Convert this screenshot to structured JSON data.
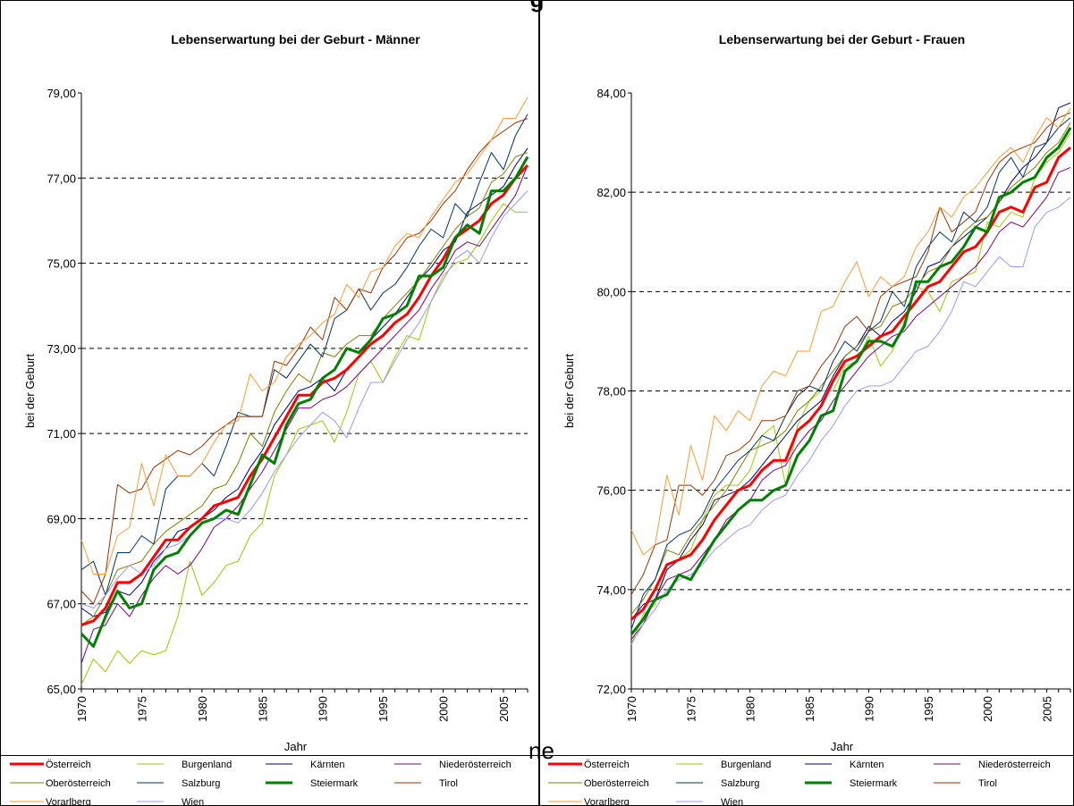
{
  "page": {
    "top_title_fragment": "g",
    "overlap_fragment": "ne"
  },
  "colors": {
    "Österreich": "#ff0000",
    "Burgenland": "#99cc00",
    "Kärnten": "#000080",
    "Niederösterreich": "#800080",
    "Oberösterreich": "#808000",
    "Salzburg": "#003366",
    "Steiermark": "#008000",
    "Tirol": "#993300",
    "Vorarlberg": "#ff9933",
    "Wien": "#9999ff"
  },
  "chart_data": [
    {
      "type": "line",
      "title": "Lebenserwartung bei der Geburt - Männer",
      "xlabel": "Jahr",
      "ylabel": "bei der Geburt",
      "xlim": [
        1970,
        2007
      ],
      "ylim": [
        65,
        79
      ],
      "yticks": [
        "65,00",
        "67,00",
        "69,00",
        "71,00",
        "73,00",
        "75,00",
        "77,00",
        "79,00"
      ],
      "xticks": [
        "1970",
        "1975",
        "1980",
        "1985",
        "1990",
        "1995",
        "2000",
        "2005"
      ],
      "grid": "dashed horizontal",
      "legend": "bottom",
      "x": [
        1970,
        1971,
        1972,
        1973,
        1974,
        1975,
        1976,
        1977,
        1978,
        1979,
        1980,
        1981,
        1982,
        1983,
        1984,
        1985,
        1986,
        1987,
        1988,
        1989,
        1990,
        1991,
        1992,
        1993,
        1994,
        1995,
        1996,
        1997,
        1998,
        1999,
        2000,
        2001,
        2002,
        2003,
        2004,
        2005,
        2006,
        2007
      ],
      "series": [
        {
          "name": "Österreich",
          "values": [
            66.5,
            66.6,
            66.9,
            67.5,
            67.5,
            67.7,
            68.1,
            68.5,
            68.5,
            68.8,
            69.0,
            69.3,
            69.4,
            69.5,
            70.0,
            70.4,
            70.9,
            71.4,
            71.9,
            71.9,
            72.2,
            72.3,
            72.5,
            72.8,
            73.1,
            73.3,
            73.6,
            73.8,
            74.2,
            74.7,
            75.1,
            75.6,
            75.8,
            76.0,
            76.4,
            76.6,
            77.0,
            77.3
          ]
        },
        {
          "name": "Burgenland",
          "values": [
            65.1,
            65.7,
            65.4,
            65.9,
            65.6,
            65.9,
            65.8,
            65.9,
            66.7,
            68.0,
            67.2,
            67.5,
            67.9,
            68.0,
            68.6,
            68.9,
            70.0,
            70.5,
            71.1,
            71.2,
            71.3,
            70.8,
            71.5,
            72.4,
            72.7,
            72.2,
            72.8,
            73.3,
            73.2,
            74.1,
            74.7,
            75.0,
            75.1,
            75.5,
            76.0,
            76.4,
            76.2,
            76.2
          ]
        },
        {
          "name": "Kärnten",
          "values": [
            66.9,
            66.7,
            66.8,
            67.3,
            67.2,
            67.5,
            68.0,
            68.3,
            68.7,
            68.8,
            69.0,
            69.2,
            69.5,
            69.7,
            70.2,
            70.6,
            71.2,
            71.6,
            72.0,
            72.1,
            72.3,
            72.0,
            72.5,
            72.8,
            73.2,
            73.5,
            73.8,
            74.2,
            74.6,
            74.9,
            75.3,
            75.5,
            76.2,
            76.4,
            76.6,
            76.8,
            77.3,
            77.7
          ]
        },
        {
          "name": "Niederösterreich",
          "values": [
            65.6,
            66.4,
            66.5,
            67.0,
            66.7,
            67.2,
            67.6,
            67.9,
            67.7,
            67.9,
            68.3,
            68.8,
            69.0,
            69.3,
            69.7,
            70.1,
            70.6,
            71.1,
            71.6,
            71.6,
            71.8,
            71.9,
            72.1,
            72.4,
            72.7,
            73.0,
            73.3,
            73.6,
            73.9,
            74.4,
            74.8,
            75.3,
            75.5,
            75.4,
            75.8,
            76.2,
            76.6,
            77.3
          ]
        },
        {
          "name": "Oberösterreich",
          "values": [
            66.5,
            66.7,
            67.2,
            67.8,
            67.9,
            68.0,
            68.4,
            68.7,
            68.9,
            69.1,
            69.3,
            69.7,
            69.8,
            70.3,
            71.0,
            70.7,
            71.5,
            72.0,
            72.4,
            72.2,
            72.9,
            72.8,
            73.1,
            73.3,
            73.3,
            73.7,
            74.0,
            74.3,
            74.6,
            75.0,
            75.4,
            75.8,
            76.1,
            76.3,
            76.9,
            77.1,
            77.5,
            77.6
          ]
        },
        {
          "name": "Salzburg",
          "values": [
            67.8,
            68.0,
            67.2,
            68.2,
            68.2,
            68.6,
            68.4,
            69.7,
            70.0,
            70.0,
            70.3,
            70.0,
            70.7,
            71.5,
            71.4,
            71.4,
            72.5,
            72.3,
            72.7,
            73.1,
            72.8,
            73.7,
            73.9,
            74.4,
            73.9,
            74.3,
            74.5,
            74.9,
            75.4,
            75.8,
            75.6,
            76.4,
            76.1,
            76.9,
            77.6,
            77.2,
            78.0,
            78.5
          ]
        },
        {
          "name": "Steiermark",
          "values": [
            66.3,
            66.0,
            66.7,
            67.3,
            66.9,
            67.0,
            67.8,
            68.1,
            68.2,
            68.6,
            68.9,
            69.0,
            69.2,
            69.1,
            69.8,
            70.5,
            70.3,
            71.2,
            71.7,
            71.8,
            72.3,
            72.5,
            73.0,
            72.9,
            73.2,
            73.7,
            73.8,
            74.0,
            74.7,
            74.7,
            74.9,
            75.6,
            75.9,
            75.7,
            76.7,
            76.7,
            77.0,
            77.5
          ]
        },
        {
          "name": "Tirol",
          "values": [
            67.3,
            67.0,
            67.7,
            69.8,
            69.6,
            69.7,
            70.2,
            70.4,
            70.6,
            70.5,
            70.7,
            71.0,
            71.2,
            71.4,
            71.4,
            71.4,
            72.7,
            72.6,
            73.0,
            73.5,
            73.2,
            74.2,
            73.9,
            74.4,
            74.3,
            74.9,
            75.2,
            75.6,
            75.7,
            76.0,
            76.4,
            76.7,
            77.2,
            77.6,
            77.9,
            78.1,
            78.3,
            78.4
          ]
        },
        {
          "name": "Vorarlberg",
          "values": [
            68.5,
            67.7,
            67.7,
            68.6,
            68.8,
            70.3,
            69.3,
            70.5,
            70.0,
            70.0,
            70.3,
            70.8,
            71.2,
            71.3,
            72.4,
            72.0,
            72.2,
            72.8,
            73.1,
            73.3,
            73.6,
            73.8,
            74.5,
            74.2,
            74.8,
            74.9,
            75.4,
            75.7,
            75.6,
            76.1,
            76.5,
            76.9,
            77.1,
            77.5,
            77.9,
            78.4,
            78.4,
            78.9
          ]
        },
        {
          "name": "Wien",
          "values": [
            67.0,
            66.9,
            67.2,
            67.6,
            67.9,
            67.7,
            67.9,
            68.3,
            68.4,
            68.6,
            68.9,
            69.0,
            69.0,
            68.9,
            69.2,
            69.6,
            70.1,
            70.5,
            70.9,
            71.2,
            71.5,
            71.3,
            70.9,
            71.6,
            72.2,
            72.2,
            72.7,
            73.2,
            73.6,
            74.1,
            74.6,
            75.1,
            75.3,
            75.0,
            75.6,
            76.1,
            76.4,
            76.7
          ]
        }
      ]
    },
    {
      "type": "line",
      "title": "Lebenserwartung bei der Geburt - Frauen",
      "xlabel": "Jahr",
      "ylabel": "bei der Geburt",
      "xlim": [
        1970,
        2007
      ],
      "ylim": [
        72,
        84
      ],
      "yticks": [
        "72,00",
        "74,00",
        "76,00",
        "78,00",
        "80,00",
        "82,00",
        "84,00"
      ],
      "xticks": [
        "1970",
        "1975",
        "1980",
        "1985",
        "1990",
        "1995",
        "2000",
        "2005"
      ],
      "grid": "dashed horizontal",
      "legend": "bottom",
      "x": [
        1970,
        1971,
        1972,
        1973,
        1974,
        1975,
        1976,
        1977,
        1978,
        1979,
        1980,
        1981,
        1982,
        1983,
        1984,
        1985,
        1986,
        1987,
        1988,
        1989,
        1990,
        1991,
        1992,
        1993,
        1994,
        1995,
        1996,
        1997,
        1998,
        1999,
        2000,
        2001,
        2002,
        2003,
        2004,
        2005,
        2006,
        2007
      ],
      "series": [
        {
          "name": "Österreich",
          "values": [
            73.4,
            73.6,
            74.0,
            74.5,
            74.6,
            74.7,
            75.0,
            75.4,
            75.7,
            76.0,
            76.1,
            76.4,
            76.6,
            76.6,
            77.2,
            77.4,
            77.7,
            78.2,
            78.6,
            78.7,
            78.9,
            79.1,
            79.2,
            79.5,
            79.8,
            80.1,
            80.2,
            80.5,
            80.8,
            80.9,
            81.2,
            81.6,
            81.7,
            81.6,
            82.1,
            82.2,
            82.7,
            82.9
          ]
        },
        {
          "name": "Burgenland",
          "values": [
            72.9,
            73.5,
            73.7,
            74.4,
            74.6,
            74.8,
            75.4,
            75.9,
            76.1,
            76.1,
            76.4,
            77.1,
            77.3,
            76.1,
            77.3,
            77.8,
            78.0,
            78.0,
            78.5,
            78.6,
            79.1,
            78.5,
            78.8,
            79.4,
            80.1,
            80.0,
            79.6,
            80.2,
            80.3,
            80.4,
            81.4,
            81.3,
            81.6,
            81.5,
            82.3,
            82.6,
            82.8,
            83.2
          ]
        },
        {
          "name": "Kärnten",
          "values": [
            73.4,
            73.7,
            73.8,
            74.4,
            74.6,
            75.0,
            75.3,
            75.8,
            75.9,
            76.0,
            76.2,
            76.5,
            76.8,
            77.1,
            77.4,
            77.6,
            77.8,
            78.3,
            78.7,
            78.9,
            79.3,
            79.1,
            79.4,
            79.6,
            80.0,
            80.5,
            80.6,
            80.9,
            81.1,
            81.3,
            81.5,
            81.8,
            82.2,
            82.5,
            82.7,
            83.0,
            83.7,
            83.8
          ]
        },
        {
          "name": "Niederösterreich",
          "values": [
            73.0,
            73.3,
            73.8,
            74.2,
            74.3,
            74.4,
            74.7,
            75.0,
            75.4,
            75.6,
            75.8,
            76.2,
            76.4,
            76.5,
            76.9,
            77.2,
            77.4,
            77.8,
            78.1,
            78.4,
            78.7,
            78.9,
            79.1,
            79.2,
            79.5,
            79.7,
            79.9,
            80.1,
            80.3,
            80.5,
            80.8,
            81.2,
            81.4,
            81.3,
            81.6,
            81.9,
            82.4,
            82.5
          ]
        },
        {
          "name": "Oberösterreich",
          "values": [
            73.5,
            73.8,
            74.2,
            74.8,
            74.7,
            75.1,
            75.4,
            75.7,
            76.0,
            76.4,
            76.8,
            76.9,
            77.0,
            77.2,
            77.6,
            77.8,
            78.1,
            78.4,
            78.7,
            78.9,
            79.2,
            79.3,
            79.7,
            79.8,
            80.1,
            80.4,
            80.5,
            80.9,
            81.2,
            81.4,
            81.5,
            81.8,
            82.1,
            82.3,
            82.5,
            82.8,
            83.0,
            83.4
          ]
        },
        {
          "name": "Salzburg",
          "values": [
            73.2,
            73.9,
            74.2,
            74.9,
            75.1,
            75.2,
            75.5,
            76.0,
            76.3,
            76.6,
            76.8,
            77.1,
            77.0,
            77.5,
            77.9,
            78.1,
            78.0,
            78.6,
            79.0,
            78.8,
            79.2,
            79.4,
            80.0,
            79.7,
            80.5,
            80.9,
            81.2,
            81.0,
            81.6,
            81.4,
            81.7,
            82.4,
            82.7,
            82.3,
            82.9,
            83.0,
            83.3,
            83.5
          ]
        },
        {
          "name": "Steiermark",
          "values": [
            73.1,
            73.4,
            73.8,
            73.9,
            74.3,
            74.2,
            74.6,
            75.0,
            75.3,
            75.6,
            75.8,
            75.8,
            76.0,
            76.1,
            76.7,
            77.0,
            77.5,
            77.6,
            78.4,
            78.6,
            79.0,
            79.0,
            78.9,
            79.3,
            80.2,
            80.2,
            80.5,
            80.6,
            80.9,
            81.3,
            81.2,
            81.9,
            82.0,
            82.2,
            82.3,
            82.7,
            82.9,
            83.3
          ]
        },
        {
          "name": "Tirol",
          "values": [
            73.9,
            74.3,
            74.9,
            75.0,
            76.1,
            76.1,
            75.9,
            76.2,
            76.7,
            76.8,
            77.0,
            77.4,
            77.4,
            77.5,
            78.0,
            78.1,
            78.5,
            78.8,
            79.3,
            79.5,
            79.2,
            79.9,
            80.1,
            80.2,
            80.3,
            80.8,
            81.7,
            81.2,
            81.4,
            81.6,
            82.2,
            82.6,
            82.8,
            82.9,
            83.0,
            83.3,
            83.5,
            83.6
          ]
        },
        {
          "name": "Vorarlberg",
          "values": [
            75.2,
            74.7,
            74.9,
            76.3,
            75.5,
            76.9,
            76.2,
            77.5,
            77.2,
            77.6,
            77.4,
            78.1,
            78.4,
            78.3,
            78.8,
            78.8,
            79.6,
            79.7,
            80.2,
            80.6,
            79.9,
            80.3,
            80.1,
            80.3,
            80.9,
            81.2,
            81.7,
            81.5,
            81.9,
            82.1,
            82.4,
            82.7,
            82.9,
            82.6,
            83.1,
            83.5,
            83.3,
            83.7
          ]
        },
        {
          "name": "Wien",
          "values": [
            72.9,
            73.3,
            73.6,
            74.0,
            74.2,
            74.3,
            74.5,
            74.8,
            75.0,
            75.2,
            75.3,
            75.6,
            75.8,
            75.9,
            76.3,
            76.6,
            77.0,
            77.3,
            77.7,
            78.0,
            78.1,
            78.1,
            78.2,
            78.5,
            78.8,
            78.9,
            79.2,
            79.6,
            80.2,
            80.1,
            80.4,
            80.7,
            80.5,
            80.5,
            81.3,
            81.6,
            81.7,
            81.9
          ]
        }
      ]
    }
  ]
}
